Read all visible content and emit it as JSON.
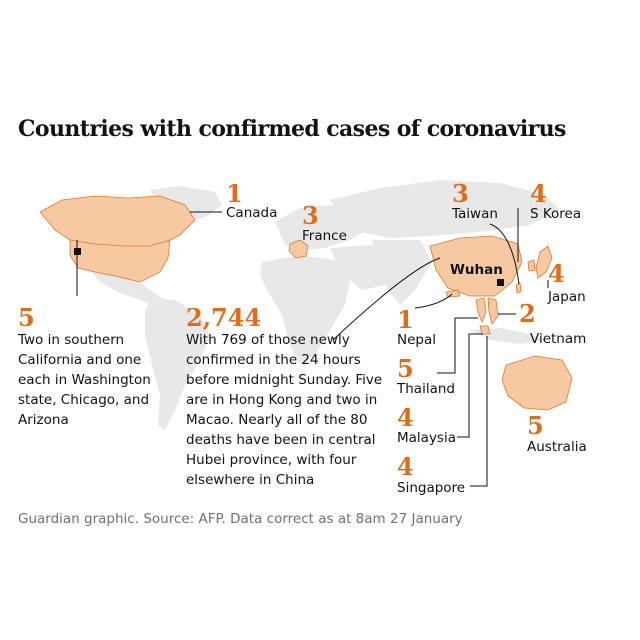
{
  "title": "Countries with confirmed cases of coronavirus",
  "colors": {
    "highlight": "#f6c9a3",
    "highlight_border": "#e07a2a",
    "land": "#e8e8e8",
    "number": "#e06c1a",
    "marker": "#121212"
  },
  "city": "Wuhan",
  "countries": [
    {
      "id": "canada",
      "name": "Canada",
      "count": "1"
    },
    {
      "id": "france",
      "name": "France",
      "count": "3"
    },
    {
      "id": "taiwan",
      "name": "Taiwan",
      "count": "3"
    },
    {
      "id": "skorea",
      "name": "S Korea",
      "count": "4"
    },
    {
      "id": "japan",
      "name": "Japan",
      "count": "4"
    },
    {
      "id": "nepal",
      "name": "Nepal",
      "count": "1"
    },
    {
      "id": "vietnam",
      "name": "Vietnam",
      "count": "2"
    },
    {
      "id": "thailand",
      "name": "Thailand",
      "count": "5"
    },
    {
      "id": "malaysia",
      "name": "Malaysia",
      "count": "4"
    },
    {
      "id": "singapore",
      "name": "Singapore",
      "count": "4"
    },
    {
      "id": "australia",
      "name": "Australia",
      "count": "5"
    }
  ],
  "us": {
    "count": "5",
    "note": [
      "Two in southern",
      "California and one",
      "each in Washington",
      "state, Chicago, and",
      "Arizona"
    ]
  },
  "china": {
    "count": "2,744",
    "note": [
      "With 769 of those newly",
      "confirmed in the 24 hours",
      "before midnight Sunday. Five",
      "are in Hong Kong and two in",
      "Macao. Nearly all of the 80",
      "deaths have been in central",
      "Hubei province, with four",
      "elsewhere in China"
    ]
  },
  "source": "Guardian graphic. Source: AFP. Data correct as at 8am 27 January"
}
